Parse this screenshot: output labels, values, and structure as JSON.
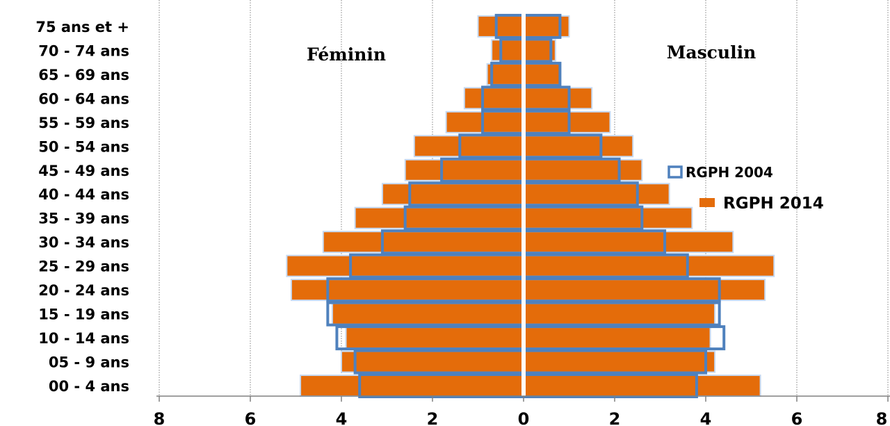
{
  "chart_data": {
    "type": "bar",
    "orientation": "horizontal",
    "subtype": "population-pyramid",
    "categories": [
      "00 -  4 ans",
      "05 -  9 ans",
      "10 - 14 ans",
      "15 - 19 ans",
      "20 - 24 ans",
      "25 - 29 ans",
      "30 - 34 ans",
      "35 - 39 ans",
      "40 - 44 ans",
      "45 - 49 ans",
      "50 - 54 ans",
      "55 - 59 ans",
      "60 - 64 ans",
      "65 - 69 ans",
      "70 - 74 ans",
      "75 ans et +"
    ],
    "side_labels": {
      "left": "Féminin",
      "right": "Masculin"
    },
    "series": [
      {
        "name": "RGPH 2014",
        "style": "filled",
        "color": "#e46c0a",
        "female": [
          4.9,
          4.0,
          3.9,
          4.2,
          5.1,
          5.2,
          4.4,
          3.7,
          3.1,
          2.6,
          2.4,
          1.7,
          1.3,
          0.8,
          0.7,
          1.0
        ],
        "male": [
          5.2,
          4.2,
          4.1,
          4.2,
          5.3,
          5.5,
          4.6,
          3.7,
          3.2,
          2.6,
          2.4,
          1.9,
          1.5,
          0.8,
          0.7,
          1.0
        ]
      },
      {
        "name": "RGPH 2004",
        "style": "outline",
        "color": "#4f81bd",
        "female": [
          3.6,
          3.7,
          4.1,
          4.3,
          4.3,
          3.8,
          3.1,
          2.6,
          2.5,
          1.8,
          1.4,
          0.9,
          0.9,
          0.7,
          0.5,
          0.6
        ],
        "male": [
          3.8,
          4.0,
          4.4,
          4.3,
          4.3,
          3.6,
          3.1,
          2.6,
          2.5,
          2.1,
          1.7,
          1.0,
          1.0,
          0.8,
          0.6,
          0.8
        ]
      }
    ],
    "x_ticks": [
      "8",
      "6",
      "4",
      "2",
      "0",
      "2",
      "4",
      "6",
      "8"
    ],
    "xlim": [
      -8,
      8
    ],
    "grid": "vertical-dotted",
    "legend": {
      "position": "right",
      "entries": [
        "RGPH 2004",
        "RGPH 2014"
      ]
    },
    "title": "",
    "xlabel": "",
    "ylabel": ""
  }
}
